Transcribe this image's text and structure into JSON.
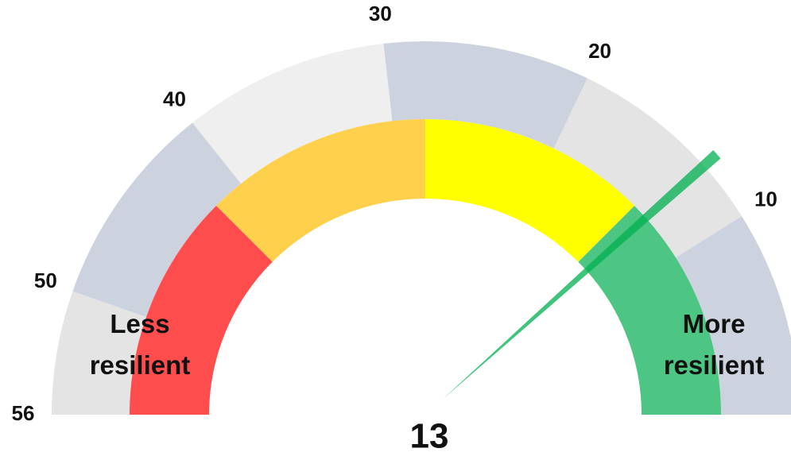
{
  "chart_data": {
    "type": "gauge",
    "ylim": [
      0,
      56
    ],
    "yticks": [
      10,
      20,
      30,
      40,
      50,
      56
    ],
    "outer_band_colors": [
      "#cdd3de",
      "#e4e4e4",
      "#cdd3de",
      "#efefef",
      "#cdd3de",
      "#e4e4e4"
    ],
    "bands": [
      {
        "from": 0,
        "to": 14,
        "color": "#4dc683"
      },
      {
        "from": 14,
        "to": 28,
        "color": "#ffff00"
      },
      {
        "from": 28,
        "to": 42,
        "color": "#ffd04c"
      },
      {
        "from": 42,
        "to": 56,
        "color": "#ff4d4d"
      }
    ],
    "value": 13,
    "needle_color": "#00b050",
    "annotations": [
      "Less resilient",
      "More resilient"
    ]
  }
}
